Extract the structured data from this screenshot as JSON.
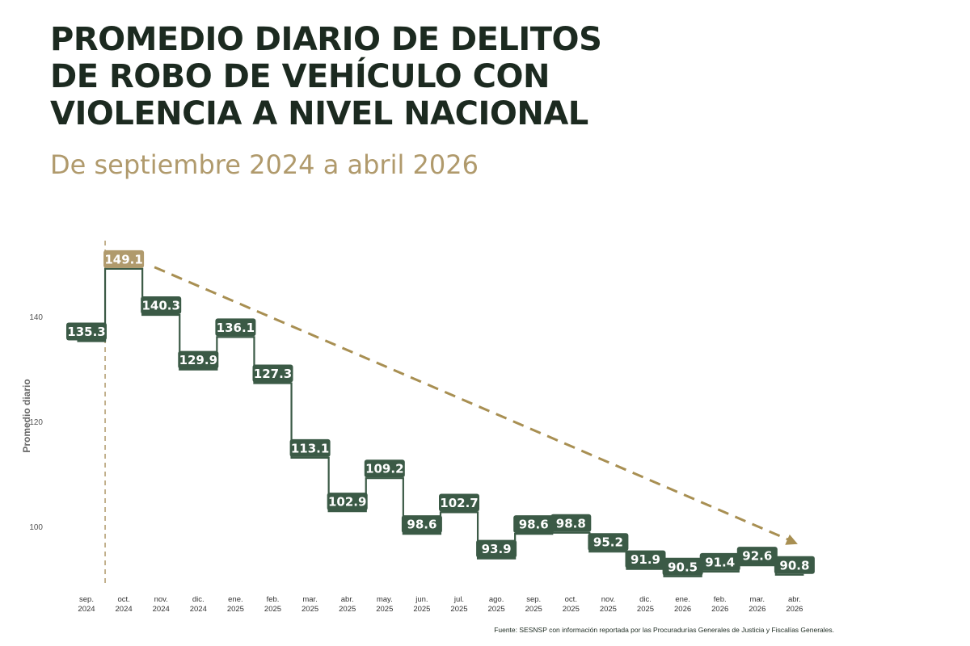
{
  "header": {
    "title_lines": [
      "PROMEDIO DIARIO DE DELITOS",
      "DE ROBO DE VEHÍCULO CON",
      "VIOLENCIA A NIVEL NACIONAL"
    ],
    "subtitle": "De septiembre 2024 a abril 2026"
  },
  "footer": {
    "source": "Fuente: SESNSP con información reportada por las Procuradurías Generales de Justicia y Fiscalías Generales."
  },
  "colors": {
    "title": "#1c2a20",
    "subtitle": "#b09a6c",
    "series": "#3b5a46",
    "highlight": "#b09a6c",
    "trend": "#a88f52",
    "axis_text": "#555555"
  },
  "chart_data": {
    "type": "line",
    "step": true,
    "title": "",
    "xlabel": "",
    "ylabel": "Promedio diario",
    "ylim": [
      86,
      156
    ],
    "yticks": [
      100,
      120,
      140
    ],
    "grid": false,
    "categories": [
      [
        "sep.",
        "2024"
      ],
      [
        "oct.",
        "2024"
      ],
      [
        "nov.",
        "2024"
      ],
      [
        "dic.",
        "2024"
      ],
      [
        "ene.",
        "2025"
      ],
      [
        "feb.",
        "2025"
      ],
      [
        "mar.",
        "2025"
      ],
      [
        "abr.",
        "2025"
      ],
      [
        "may.",
        "2025"
      ],
      [
        "jun.",
        "2025"
      ],
      [
        "jul.",
        "2025"
      ],
      [
        "ago.",
        "2025"
      ],
      [
        "sep.",
        "2025"
      ],
      [
        "oct.",
        "2025"
      ],
      [
        "nov.",
        "2025"
      ],
      [
        "dic.",
        "2025"
      ],
      [
        "ene.",
        "2026"
      ],
      [
        "feb.",
        "2026"
      ],
      [
        "mar.",
        "2026"
      ],
      [
        "abr.",
        "2026"
      ]
    ],
    "values": [
      135.3,
      149.1,
      140.3,
      129.9,
      136.1,
      127.3,
      113.1,
      102.9,
      109.2,
      98.6,
      102.7,
      93.9,
      98.6,
      98.8,
      95.2,
      91.9,
      90.5,
      91.4,
      92.6,
      90.8
    ],
    "data_labels": [
      "135.3",
      "149.1",
      "140.3",
      "129.9",
      "136.1",
      "127.3",
      "113.1",
      "102.9",
      "109.2",
      "98.6",
      "102.7",
      "93.9",
      "98.6",
      "98.8",
      "95.2",
      "91.9",
      "90.5",
      "91.4",
      "92.6",
      "90.8"
    ],
    "highlight_index": 1,
    "trend_line": {
      "from_index": 1,
      "to_index": 19
    }
  }
}
